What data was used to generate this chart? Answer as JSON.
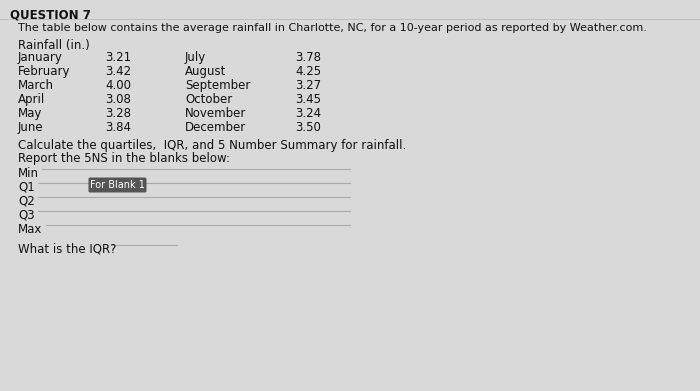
{
  "title": "QUESTION 7",
  "subtitle": "The table below contains the average rainfall in Charlotte, NC, for a 10-year period as reported by Weather.com.",
  "table_header": "Rainfall (in.)",
  "left_months": [
    "January",
    "February",
    "March",
    "April",
    "May",
    "June"
  ],
  "left_values": [
    "3.21",
    "3.42",
    "4.00",
    "3.08",
    "3.28",
    "3.84"
  ],
  "right_months": [
    "July",
    "August",
    "September",
    "October",
    "November",
    "December"
  ],
  "right_values": [
    "3.78",
    "4.25",
    "3.27",
    "3.45",
    "3.24",
    "3.50"
  ],
  "instruction1": "Calculate the quartiles,  IQR, and 5 Number Summary for rainfall.",
  "instruction2": "Report the 5NS in the blanks below:",
  "ns_labels": [
    "Min",
    "Q1",
    "Q2",
    "Q3",
    "Max"
  ],
  "button_text": "For Blank 1",
  "iqr_label": "What is the IQR?",
  "bg_color": "#d9d9d9",
  "text_color": "#111111",
  "button_bg": "#555555",
  "button_text_color": "#ffffff",
  "line_color": "#aaaaaa",
  "title_fontsize": 8.5,
  "body_fontsize": 8.5
}
